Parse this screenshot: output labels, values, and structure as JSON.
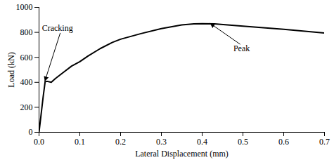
{
  "chart_data": {
    "type": "line",
    "x_label": "Lateral Displacement (mm)",
    "y_label": "Load (kN)",
    "x": [
      0,
      0.005,
      0.01,
      0.015,
      0.02,
      0.03,
      0.04,
      0.06,
      0.08,
      0.1,
      0.12,
      0.15,
      0.18,
      0.2,
      0.25,
      0.3,
      0.35,
      0.38,
      0.4,
      0.43,
      0.5,
      0.6,
      0.7
    ],
    "values": [
      0,
      140,
      280,
      405,
      408,
      400,
      430,
      480,
      530,
      565,
      610,
      670,
      720,
      745,
      790,
      830,
      860,
      868,
      870,
      868,
      850,
      825,
      795
    ],
    "color": "#000000",
    "xlim": [
      0,
      0.7
    ],
    "xticks": [
      {
        "value": 0,
        "label": "0.0"
      },
      0.1,
      0.2,
      0.3,
      0.4,
      0.5,
      0.6,
      0.7
    ],
    "ylim": [
      0,
      1000
    ],
    "yticks": [
      0,
      200,
      400,
      600,
      800,
      1000
    ],
    "grid": false,
    "annotations": [
      {
        "text": "Cracking",
        "x": 0.015,
        "y": 405
      },
      {
        "text": "Peak",
        "x": 0.42,
        "y": 870
      }
    ]
  }
}
